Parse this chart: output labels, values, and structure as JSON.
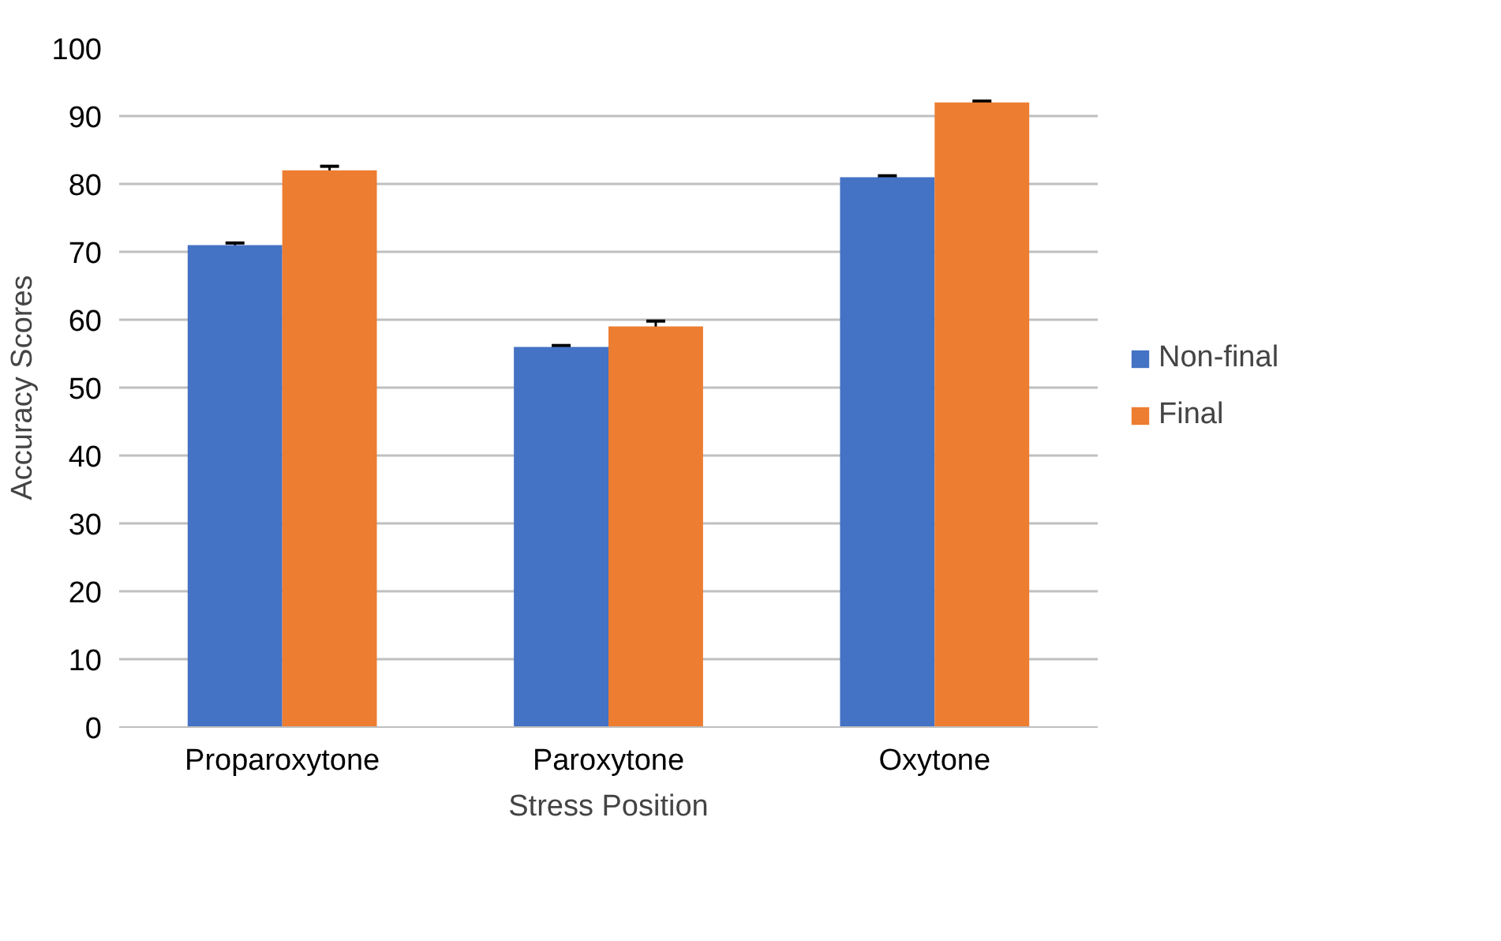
{
  "chart_data": {
    "type": "bar",
    "xlabel": "Stress Position",
    "ylabel": "Accuracy Scores",
    "categories": [
      "Proparoxytone",
      "Paroxytone",
      "Oxytone"
    ],
    "series": [
      {
        "name": "Non-final",
        "color": "#4472c4",
        "values": [
          71,
          56,
          81
        ],
        "errors": [
          0.3,
          0.2,
          0.2
        ]
      },
      {
        "name": "Final",
        "color": "#ed7d31",
        "values": [
          82,
          59,
          92
        ],
        "errors": [
          0.6,
          0.8,
          0.2
        ]
      }
    ],
    "ylim": [
      0,
      100
    ],
    "yticks": [
      0,
      10,
      20,
      30,
      40,
      50,
      60,
      70,
      80,
      90,
      100
    ],
    "grid": "y",
    "legend": "right"
  }
}
